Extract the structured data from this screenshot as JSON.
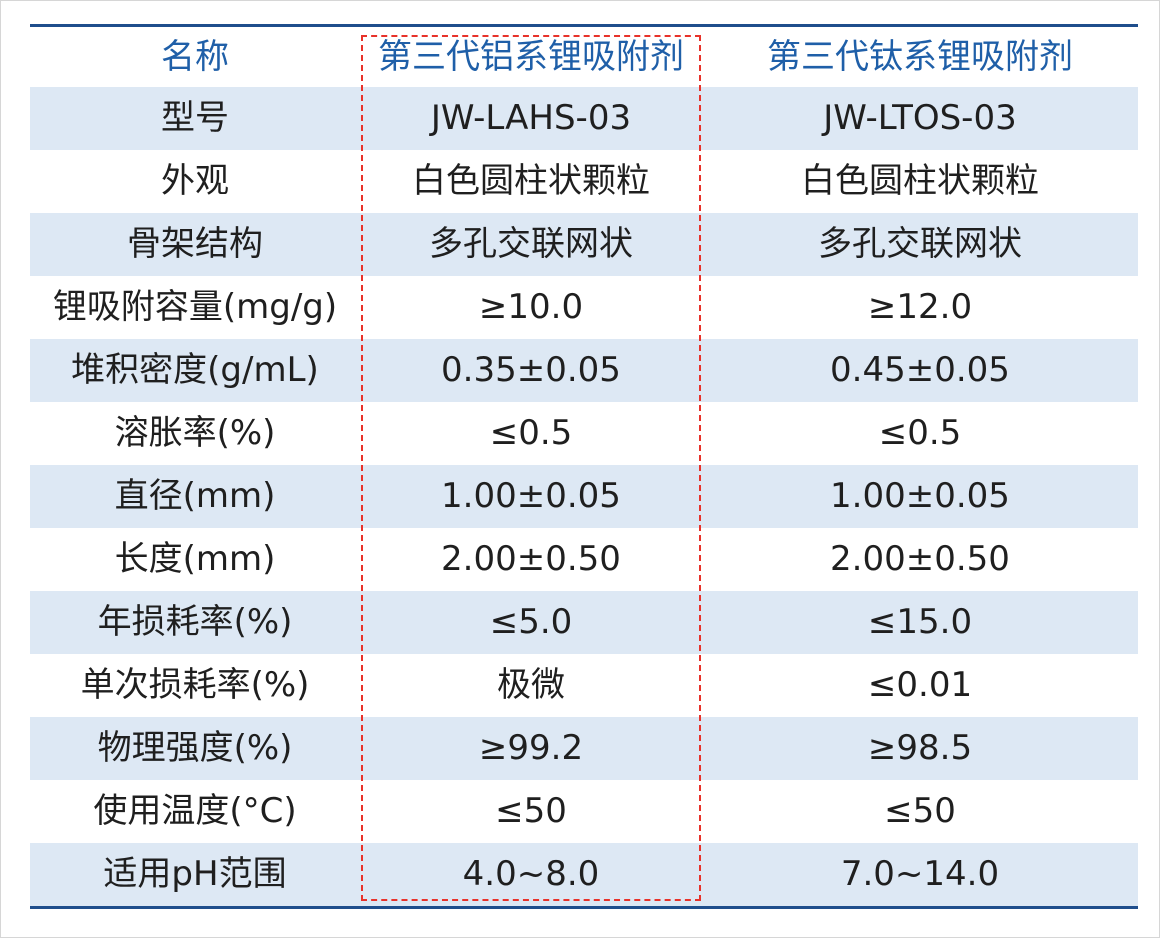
{
  "header": {
    "col1": "名称",
    "col2": "第三代铝系锂吸附剂",
    "col3": "第三代钛系锂吸附剂"
  },
  "rows": [
    {
      "label": "型号",
      "al": "JW-LAHS-03",
      "ti": "JW-LTOS-03"
    },
    {
      "label": "外观",
      "al": "白色圆柱状颗粒",
      "ti": "白色圆柱状颗粒"
    },
    {
      "label": "骨架结构",
      "al": "多孔交联网状",
      "ti": "多孔交联网状"
    },
    {
      "label": "锂吸附容量(mg/g)",
      "al": "≥10.0",
      "ti": "≥12.0"
    },
    {
      "label": "堆积密度(g/mL)",
      "al": "0.35±0.05",
      "ti": "0.45±0.05"
    },
    {
      "label": "溶胀率(%)",
      "al": "≤0.5",
      "ti": "≤0.5"
    },
    {
      "label": "直径(mm)",
      "al": "1.00±0.05",
      "ti": "1.00±0.05"
    },
    {
      "label": "长度(mm)",
      "al": "2.00±0.50",
      "ti": "2.00±0.50"
    },
    {
      "label": "年损耗率(%)",
      "al": "≤5.0",
      "ti": "≤15.0"
    },
    {
      "label": "单次损耗率(%)",
      "al": "极微",
      "ti": "≤0.01"
    },
    {
      "label": "物理强度(%)",
      "al": "≥99.2",
      "ti": "≥98.5"
    },
    {
      "label": "使用温度(°C)",
      "al": "≤50",
      "ti": "≤50"
    },
    {
      "label": "适用pH范围",
      "al": "4.0~8.0",
      "ti": "7.0~14.0"
    }
  ],
  "colors": {
    "header_text": "#1f5fa8",
    "rule": "#1f4e8c",
    "row_shade": "#dde8f4",
    "highlight_border": "#e8322a"
  }
}
